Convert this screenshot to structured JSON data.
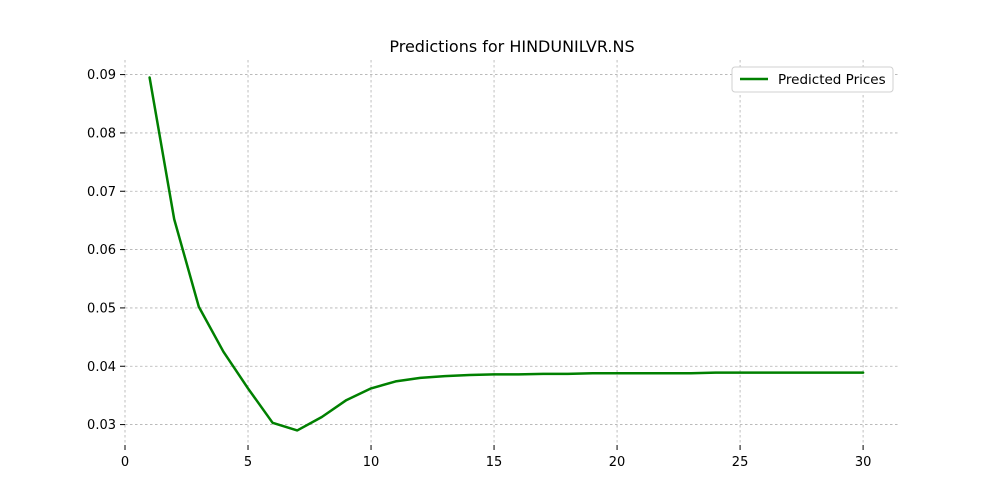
{
  "chart_data": {
    "type": "line",
    "title": "Predictions for HINDUNILVR.NS",
    "xlabel": "",
    "ylabel": "",
    "xlim": [
      0,
      31.5
    ],
    "ylim": [
      0.0265,
      0.0925
    ],
    "x_ticks": [
      0,
      5,
      10,
      15,
      20,
      25,
      30
    ],
    "y_ticks": [
      0.03,
      0.04,
      0.05,
      0.06,
      0.07,
      0.08,
      0.09
    ],
    "y_tick_labels": [
      "0.03",
      "0.04",
      "0.05",
      "0.06",
      "0.07",
      "0.08",
      "0.09"
    ],
    "grid": true,
    "legend": "top-right",
    "series": [
      {
        "name": "Predicted Prices",
        "color": "#008000",
        "x": [
          1,
          2,
          3,
          4,
          5,
          6,
          7,
          8,
          9,
          10,
          11,
          12,
          13,
          14,
          15,
          16,
          17,
          18,
          19,
          20,
          21,
          22,
          23,
          24,
          25,
          26,
          27,
          28,
          29,
          30
        ],
        "values": [
          0.0895,
          0.0652,
          0.0502,
          0.0425,
          0.0362,
          0.0303,
          0.029,
          0.0313,
          0.0342,
          0.0362,
          0.0374,
          0.038,
          0.0383,
          0.0385,
          0.0386,
          0.0386,
          0.0387,
          0.0387,
          0.0388,
          0.0388,
          0.0388,
          0.0388,
          0.0388,
          0.0389,
          0.0389,
          0.0389,
          0.0389,
          0.0389,
          0.0389,
          0.0389
        ]
      }
    ]
  }
}
